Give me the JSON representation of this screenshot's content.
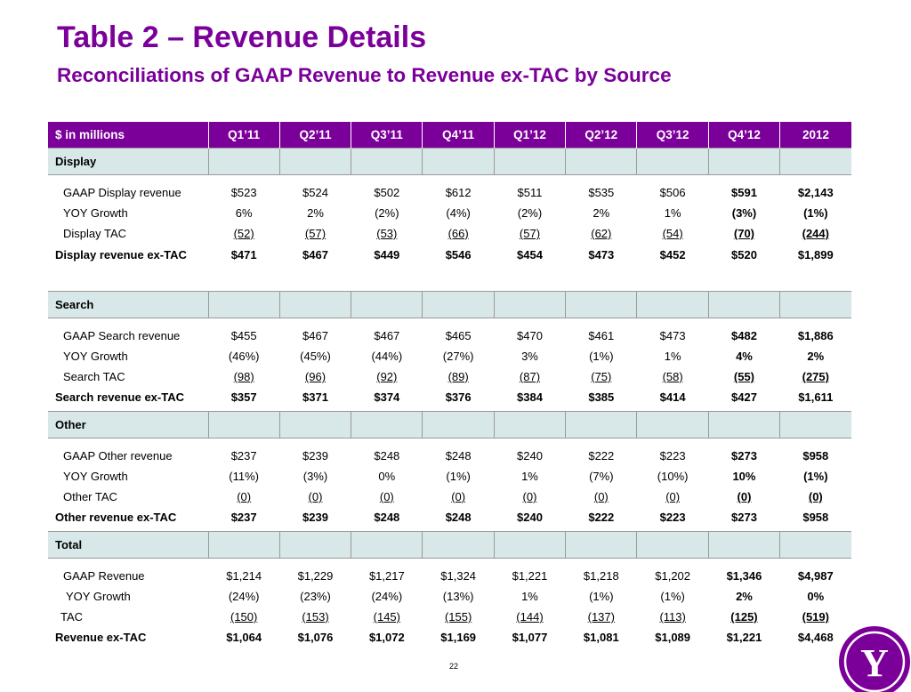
{
  "header": {
    "title": "Table 2 – Revenue Details",
    "subtitle": "Reconciliations of GAAP Revenue to Revenue ex-TAC by Source"
  },
  "table": {
    "columns": [
      "$ in millions",
      "Q1’11",
      "Q2’11",
      "Q3’11",
      "Q4’11",
      "Q1’12",
      "Q2’12",
      "Q3’12",
      "Q4’12",
      "2012"
    ],
    "sections": [
      {
        "name": "Display",
        "rows": [
          {
            "label": "GAAP Display revenue",
            "values": [
              "$523",
              "$524",
              "$502",
              "$612",
              "$511",
              "$535",
              "$506",
              "$591",
              "$2,143"
            ]
          },
          {
            "label": "YOY Growth",
            "values": [
              "6%",
              "2%",
              "(2%)",
              "(4%)",
              "(2%)",
              "2%",
              "1%",
              "(3%)",
              "(1%)"
            ]
          },
          {
            "label": "Display TAC",
            "values": [
              "(52)",
              "(57)",
              "(53)",
              "(66)",
              "(57)",
              "(62)",
              "(54)",
              "(70)",
              "(244)"
            ]
          },
          {
            "label": "Display revenue ex-TAC",
            "values": [
              "$471",
              "$467",
              "$449",
              "$546",
              "$454",
              "$473",
              "$452",
              "$520",
              "$1,899"
            ]
          }
        ]
      },
      {
        "name": "Search",
        "rows": [
          {
            "label": "GAAP Search revenue",
            "values": [
              "$455",
              "$467",
              "$467",
              "$465",
              "$470",
              "$461",
              "$473",
              "$482",
              "$1,886"
            ]
          },
          {
            "label": "YOY Growth",
            "values": [
              "(46%)",
              "(45%)",
              "(44%)",
              "(27%)",
              "3%",
              "(1%)",
              "1%",
              "4%",
              "2%"
            ]
          },
          {
            "label": "Search TAC",
            "values": [
              "(98)",
              "(96)",
              "(92)",
              "(89)",
              "(87)",
              "(75)",
              "(58)",
              "(55)",
              "(275)"
            ]
          },
          {
            "label": "Search revenue ex-TAC",
            "values": [
              "$357",
              "$371",
              "$374",
              "$376",
              "$384",
              "$385",
              "$414",
              "$427",
              "$1,611"
            ]
          }
        ]
      },
      {
        "name": "Other",
        "rows": [
          {
            "label": "GAAP Other revenue",
            "values": [
              "$237",
              "$239",
              "$248",
              "$248",
              "$240",
              "$222",
              "$223",
              "$273",
              "$958"
            ]
          },
          {
            "label": "YOY Growth",
            "values": [
              "(11%)",
              "(3%)",
              "0%",
              "(1%)",
              "1%",
              "(7%)",
              "(10%)",
              "10%",
              "(1%)"
            ]
          },
          {
            "label": "Other TAC",
            "values": [
              "(0)",
              "(0)",
              "(0)",
              "(0)",
              "(0)",
              "(0)",
              "(0)",
              "(0)",
              "(0)"
            ]
          },
          {
            "label": "Other revenue ex-TAC",
            "values": [
              "$237",
              "$239",
              "$248",
              "$248",
              "$240",
              "$222",
              "$223",
              "$273",
              "$958"
            ]
          }
        ]
      },
      {
        "name": "Total",
        "rows": [
          {
            "label": "GAAP Revenue",
            "values": [
              "$1,214",
              "$1,229",
              "$1,217",
              "$1,324",
              "$1,221",
              "$1,218",
              "$1,202",
              "$1,346",
              "$4,987"
            ]
          },
          {
            "label": "YOY Growth",
            "values": [
              "(24%)",
              "(23%)",
              "(24%)",
              "(13%)",
              "1%",
              "(1%)",
              "(1%)",
              "2%",
              "0%"
            ]
          },
          {
            "label": "TAC",
            "values": [
              "(150)",
              "(153)",
              "(145)",
              "(155)",
              "(144)",
              "(137)",
              "(113)",
              "(125)",
              "(519)"
            ]
          },
          {
            "label": "Revenue ex-TAC",
            "values": [
              "$1,064",
              "$1,076",
              "$1,072",
              "$1,169",
              "$1,077",
              "$1,081",
              "$1,089",
              "$1,221",
              "$4,468"
            ]
          }
        ]
      }
    ]
  },
  "footer": {
    "page_number": "22",
    "logo_icon": "yahoo-logo-icon",
    "logo_letter": "Y",
    "logo_excl": "!"
  },
  "colors": {
    "brand_purple": "#7b0099",
    "section_fill": "#d8e8e8"
  }
}
